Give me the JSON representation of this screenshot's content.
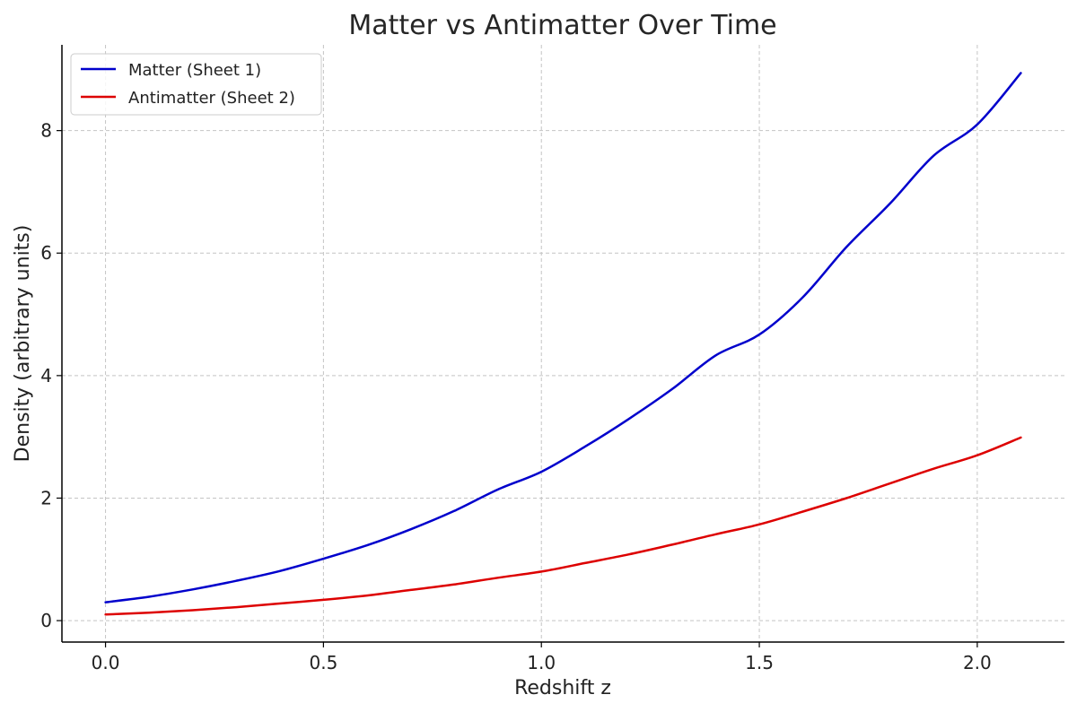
{
  "chart_data": {
    "type": "line",
    "title": "Matter vs Antimatter Over Time",
    "xlabel": "Redshift z",
    "ylabel": "Density (arbitrary units)",
    "xlim": [
      -0.1,
      2.2
    ],
    "ylim": [
      -0.35,
      9.4
    ],
    "xticks": [
      0.0,
      0.5,
      1.0,
      1.5,
      2.0
    ],
    "xtick_labels": [
      "0.0",
      "0.5",
      "1.0",
      "1.5",
      "2.0"
    ],
    "yticks": [
      0,
      2,
      4,
      6,
      8
    ],
    "ytick_labels": [
      "0",
      "2",
      "4",
      "6",
      "8"
    ],
    "grid": true,
    "legend_position": "upper-left",
    "x": [
      0.0,
      0.1,
      0.2,
      0.3,
      0.4,
      0.5,
      0.6,
      0.7,
      0.8,
      0.9,
      1.0,
      1.1,
      1.2,
      1.3,
      1.4,
      1.5,
      1.6,
      1.7,
      1.8,
      1.9,
      2.0,
      2.1
    ],
    "series": [
      {
        "name": "Matter (Sheet 1)",
        "color": "#0000cc",
        "values": [
          0.3,
          0.39,
          0.51,
          0.65,
          0.81,
          1.01,
          1.23,
          1.49,
          1.79,
          2.14,
          2.43,
          2.84,
          3.29,
          3.78,
          4.33,
          4.67,
          5.28,
          6.1,
          6.81,
          7.59,
          8.1,
          8.94
        ]
      },
      {
        "name": "Antimatter (Sheet 2)",
        "color": "#dd0000",
        "values": [
          0.1,
          0.13,
          0.17,
          0.22,
          0.28,
          0.34,
          0.41,
          0.5,
          0.59,
          0.7,
          0.8,
          0.94,
          1.08,
          1.24,
          1.41,
          1.57,
          1.78,
          2.0,
          2.24,
          2.48,
          2.7,
          2.99
        ]
      }
    ]
  }
}
